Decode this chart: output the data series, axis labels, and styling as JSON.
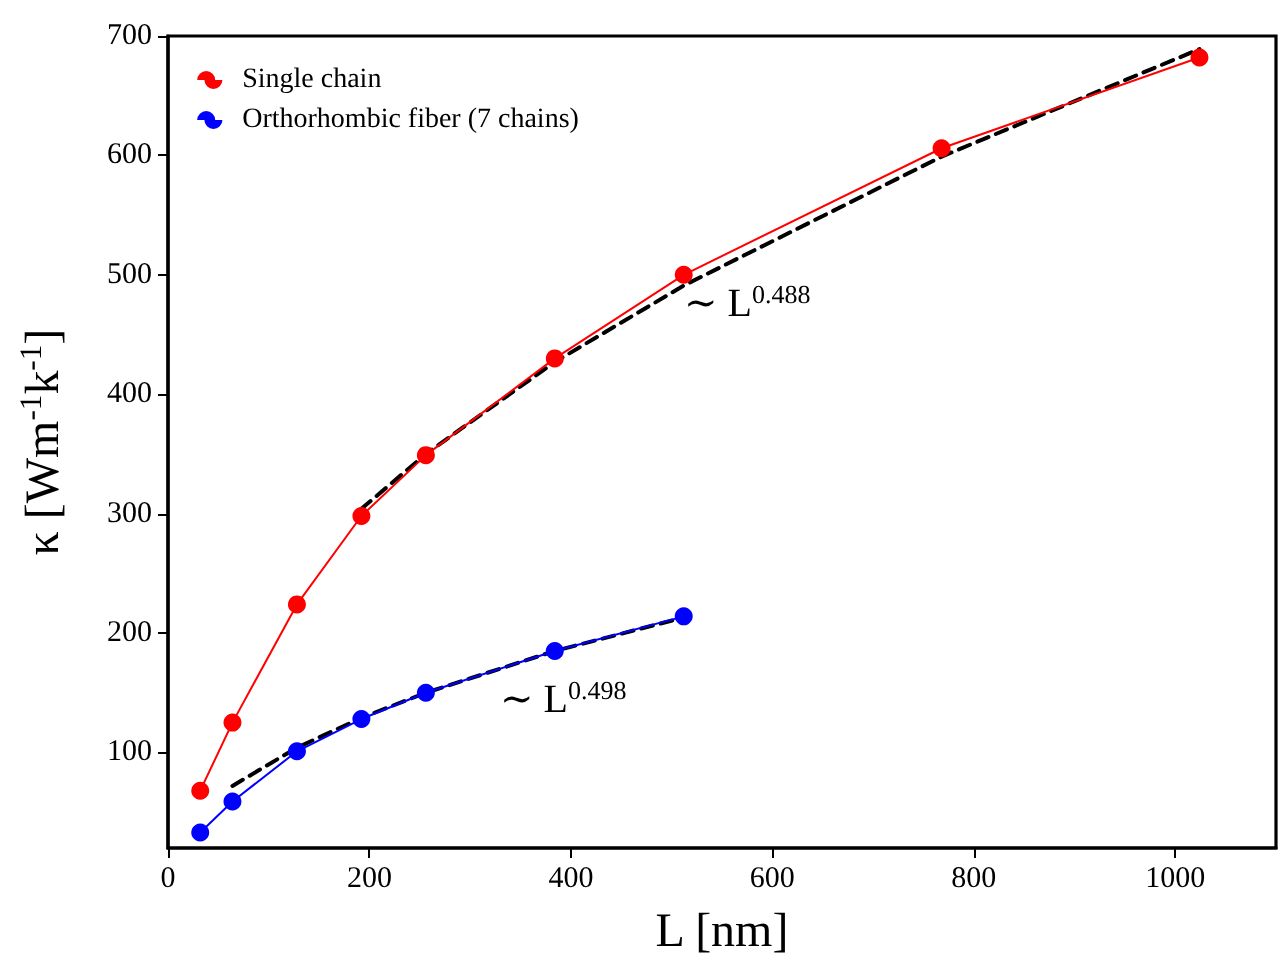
{
  "chart_data": {
    "type": "line",
    "xlabel": "L [nm]",
    "ylabel": "κ [Wm$^{-1}$k$^{-1}$]",
    "x": [
      32,
      64,
      128,
      192,
      256,
      384,
      512,
      768,
      1024
    ],
    "series": [
      {
        "name": "Single chain",
        "color": "#ff0000",
        "values": [
          68,
          125,
          224,
          298,
          349,
          430,
          500,
          606,
          682
        ],
        "marker": "circle"
      },
      {
        "name": "Orthorhombic fiber (7 chains)",
        "color": "#0000ff",
        "x": [
          32,
          64,
          128,
          192,
          256,
          384,
          512
        ],
        "values": [
          33,
          59,
          101,
          128,
          150,
          185,
          214
        ],
        "marker": "circle"
      },
      {
        "type": "line",
        "color": "#000000",
        "x": [
          192,
          256,
          384,
          512,
          768,
          1024
        ],
        "values": [
          304,
          350,
          427,
          491,
          599,
          689
        ],
        "marker": "none",
        "line_style": "dashed"
      },
      {
        "type": "line",
        "color": "#000000",
        "x": [
          64,
          128,
          192,
          256,
          384,
          512
        ],
        "values": [
          72,
          104,
          129,
          150,
          185,
          213
        ],
        "marker": "none",
        "line_style": "dashed"
      }
    ],
    "annotations": [
      "∼ L$^{0.488}$",
      "∼ L$^{0.498}$"
    ],
    "xlim": [
      0,
      1100
    ],
    "xticks": [
      0,
      200,
      400,
      600,
      800,
      1000
    ],
    "ylim": [
      20,
      700
    ],
    "yticks": [
      100,
      200,
      300,
      400,
      500,
      600,
      700
    ],
    "grid": false,
    "legend": "top left"
  }
}
